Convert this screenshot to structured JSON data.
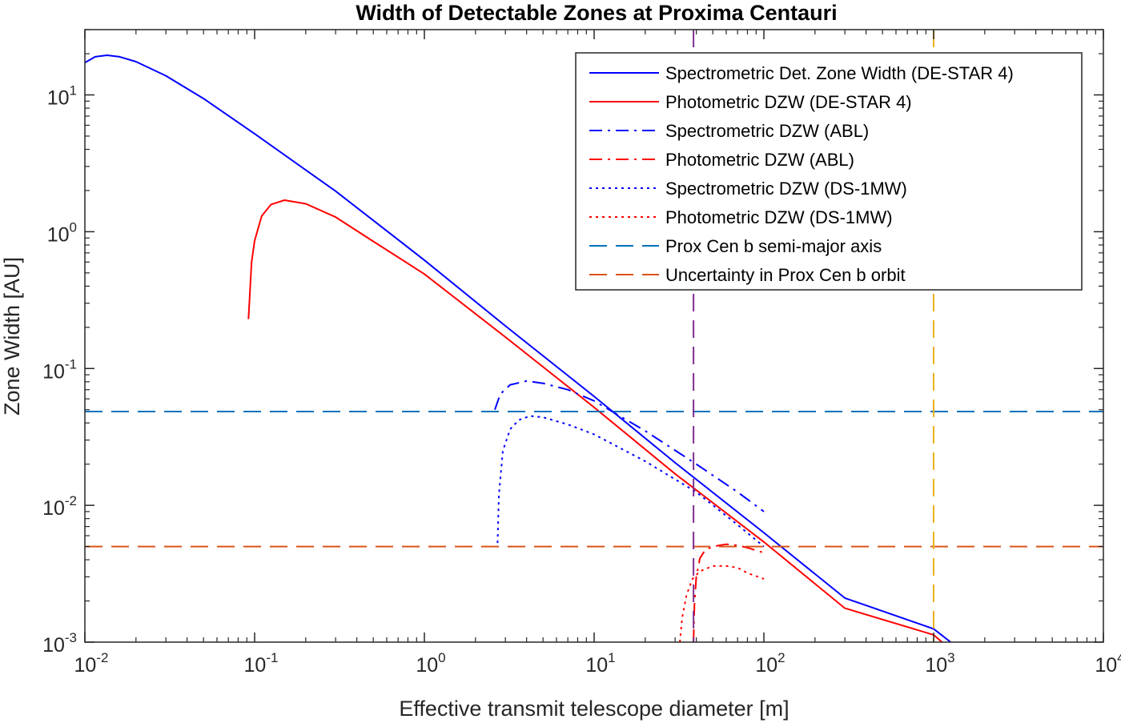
{
  "chart_data": {
    "type": "line",
    "title": "Width of Detectable Zones at Proxima Centauri",
    "xlabel": "Effective transmit telescope diameter [m]",
    "ylabel": "Zone Width [AU]",
    "xscale": "log",
    "yscale": "log",
    "xlim": [
      0.01,
      10000
    ],
    "ylim": [
      0.001,
      30
    ],
    "x_ticks": [
      {
        "base": "10",
        "exp": "-2",
        "value": 0.01
      },
      {
        "base": "10",
        "exp": "-1",
        "value": 0.1
      },
      {
        "base": "10",
        "exp": "0",
        "value": 1
      },
      {
        "base": "10",
        "exp": "1",
        "value": 10
      },
      {
        "base": "10",
        "exp": "2",
        "value": 100
      },
      {
        "base": "10",
        "exp": "3",
        "value": 1000
      },
      {
        "base": "10",
        "exp": "4",
        "value": 10000
      }
    ],
    "y_ticks": [
      {
        "base": "10",
        "exp": "-3",
        "value": 0.001
      },
      {
        "base": "10",
        "exp": "-2",
        "value": 0.01
      },
      {
        "base": "10",
        "exp": "-1",
        "value": 0.1
      },
      {
        "base": "10",
        "exp": "0",
        "value": 1
      },
      {
        "base": "10",
        "exp": "1",
        "value": 10
      }
    ],
    "grid": false,
    "legend_position": "top-right",
    "series": [
      {
        "name": "Spectrometric Det. Zone Width (DE-STAR 4)",
        "color": "#0000ff",
        "style": "solid",
        "x": [
          0.01,
          0.0115,
          0.0135,
          0.016,
          0.02,
          0.03,
          0.05,
          0.1,
          0.3,
          1,
          3,
          10,
          30,
          100,
          300,
          1000,
          1260
        ],
        "y": [
          17.2,
          19.0,
          19.5,
          19.0,
          17.5,
          13.8,
          9.4,
          5.2,
          1.98,
          0.62,
          0.205,
          0.0625,
          0.0205,
          0.0063,
          0.0021,
          0.00125,
          0.001
        ]
      },
      {
        "name": "Photometric DZW (DE-STAR 4)",
        "color": "#ff0000",
        "style": "solid",
        "x": [
          0.092,
          0.096,
          0.1,
          0.11,
          0.125,
          0.15,
          0.2,
          0.3,
          0.5,
          1,
          3,
          10,
          30,
          100,
          300,
          1000,
          1120
        ],
        "y": [
          0.23,
          0.6,
          0.86,
          1.3,
          1.58,
          1.7,
          1.6,
          1.28,
          0.85,
          0.49,
          0.17,
          0.052,
          0.017,
          0.0054,
          0.00177,
          0.00113,
          0.001
        ]
      },
      {
        "name": "Spectrometric DZW (ABL)",
        "color": "#0000ff",
        "style": "dashdot",
        "x": [
          2.6,
          2.8,
          3.2,
          4,
          5,
          7,
          10,
          20,
          40,
          70,
          100
        ],
        "y": [
          0.05,
          0.065,
          0.076,
          0.081,
          0.078,
          0.07,
          0.058,
          0.035,
          0.02,
          0.0125,
          0.009
        ]
      },
      {
        "name": "Photometric DZW (ABL)",
        "color": "#ff0000",
        "style": "dashdot",
        "x": [
          38.5,
          39,
          40,
          42,
          45,
          50,
          60,
          70,
          80,
          100
        ],
        "y": [
          0.001,
          0.0019,
          0.003,
          0.0041,
          0.0047,
          0.005,
          0.0052,
          0.0051,
          0.0049,
          0.0045
        ]
      },
      {
        "name": "Spectrometric DZW (DS-1MW)",
        "color": "#0000ff",
        "style": "dotted",
        "x": [
          2.7,
          2.75,
          2.9,
          3.2,
          3.6,
          4.2,
          5,
          7,
          10,
          20,
          40,
          70,
          100
        ],
        "y": [
          0.0053,
          0.012,
          0.025,
          0.036,
          0.042,
          0.045,
          0.044,
          0.039,
          0.033,
          0.021,
          0.0125,
          0.0072,
          0.005
        ]
      },
      {
        "name": "Photometric DZW (DS-1MW)",
        "color": "#ff0000",
        "style": "dotted",
        "x": [
          32,
          33,
          35,
          38,
          42,
          50,
          60,
          70,
          80,
          100
        ],
        "y": [
          0.001,
          0.0015,
          0.0022,
          0.0029,
          0.0033,
          0.0036,
          0.0036,
          0.0035,
          0.0032,
          0.0029
        ]
      },
      {
        "name": "Prox Cen b semi-major axis",
        "color": "#0072bd",
        "style": "dashed",
        "x": [
          0.01,
          10000
        ],
        "y": [
          0.0485,
          0.0485
        ]
      },
      {
        "name": "Uncertainty in Prox Cen b orbit",
        "color": "#d95319",
        "style": "dashed",
        "x": [
          0.01,
          10000
        ],
        "y": [
          0.005,
          0.005
        ]
      }
    ],
    "vertical_lines": [
      {
        "x": 38.5,
        "color": "#7e2f8e",
        "style": "dashed"
      },
      {
        "x": 1000,
        "color": "#edb120",
        "style": "dashed"
      }
    ]
  }
}
